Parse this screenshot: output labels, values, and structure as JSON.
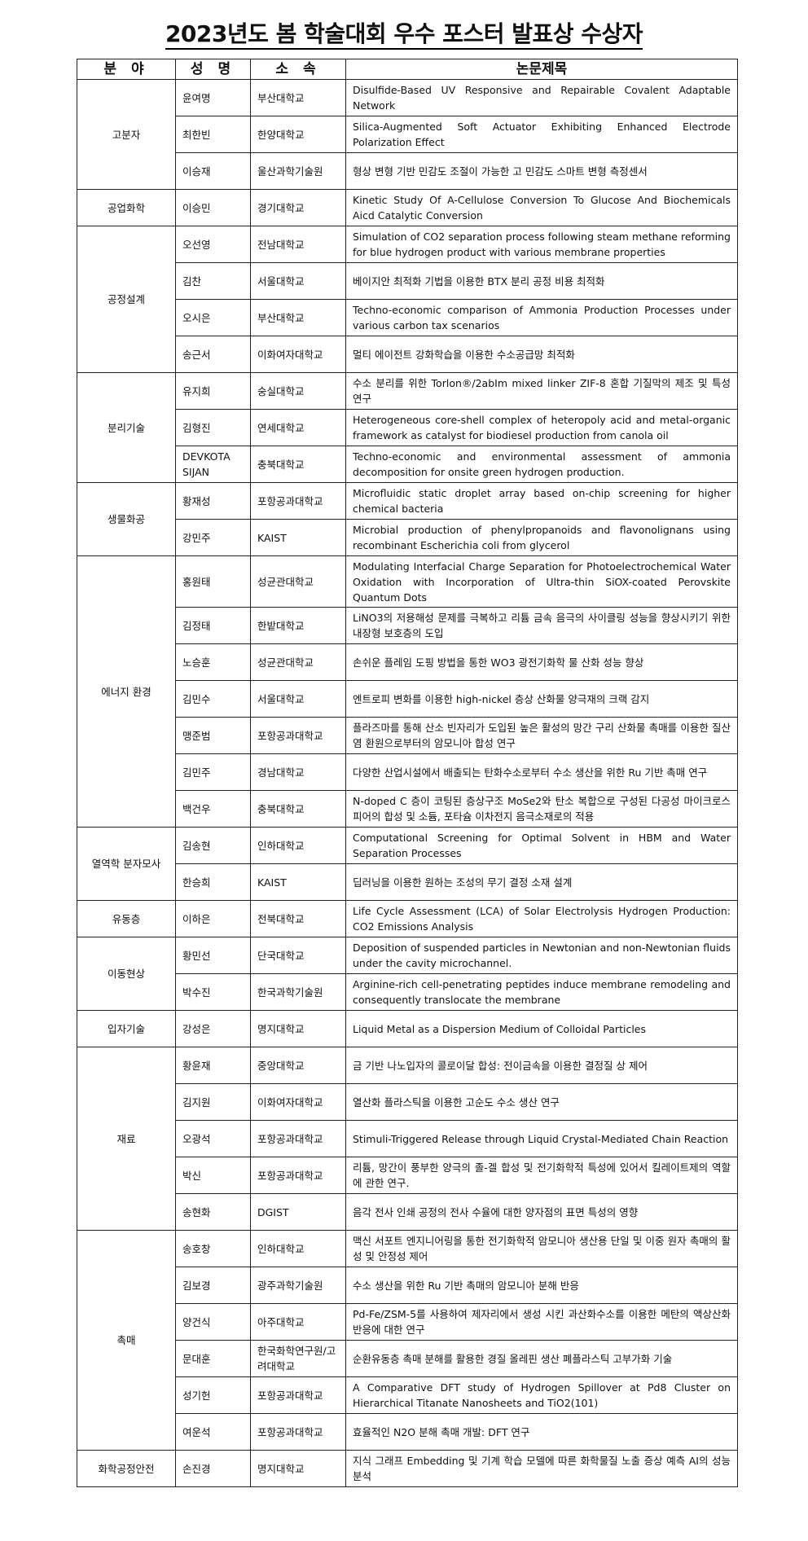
{
  "title": "2023년도 봄 학술대회 우수 포스터 발표상 수상자",
  "headers": [
    "분 야",
    "성 명",
    "소 속",
    "논문제목"
  ],
  "groups": [
    {
      "field": "고분자",
      "rows": [
        {
          "name": "윤여명",
          "affiliation": "부산대학교",
          "paper": "Disulfide-Based UV Responsive and Repairable Covalent Adaptable Network"
        },
        {
          "name": "최한빈",
          "affiliation": "한양대학교",
          "paper": "Silica-Augmented Soft Actuator Exhibiting Enhanced Electrode Polarization Effect"
        },
        {
          "name": "이승재",
          "affiliation": "울산과학기술원",
          "paper": "형상 변형 기반 민감도 조절이 가능한 고 민감도 스마트 변형 측정센서"
        }
      ]
    },
    {
      "field": "공업화학",
      "rows": [
        {
          "name": "이승민",
          "affiliation": "경기대학교",
          "paper": "Kinetic Study Of A-Cellulose Conversion To Glucose And Biochemicals Aicd Catalytic Conversion"
        }
      ]
    },
    {
      "field": "공정설계",
      "rows": [
        {
          "name": "오선영",
          "affiliation": "전남대학교",
          "paper": "Simulation of CO2 separation process following steam methane reforming for blue hydrogen product with various membrane properties"
        },
        {
          "name": "김찬",
          "affiliation": "서울대학교",
          "paper": "베이지안 최적화 기법을 이용한 BTX 분리 공정 비용 최적화"
        },
        {
          "name": "오시은",
          "affiliation": "부산대학교",
          "paper": "Techno-economic comparison of Ammonia Production Processes under various carbon tax scenarios"
        },
        {
          "name": "송근서",
          "affiliation": "이화여자대학교",
          "paper": "멀티 에이전트 강화학습을 이용한 수소공급망 최적화"
        }
      ]
    },
    {
      "field": "분리기술",
      "rows": [
        {
          "name": "유지희",
          "affiliation": "숭실대학교",
          "paper": "수소 분리를 위한 Torlon®/2abIm mixed linker ZIF-8 혼합 기질막의 제조 및 특성 연구"
        },
        {
          "name": "김형진",
          "affiliation": "연세대학교",
          "paper": "Heterogeneous core-shell complex of heteropoly acid and metal-organic framework as catalyst for biodiesel production from canola oil"
        },
        {
          "name": "DEVKOTA SIJAN",
          "affiliation": "충북대학교",
          "paper": "Techno-economic and environmental assessment of ammonia decomposition for onsite green hydrogen production."
        }
      ]
    },
    {
      "field": "생물화공",
      "rows": [
        {
          "name": "황재성",
          "affiliation": "포항공과대학교",
          "paper": "Microfluidic static droplet array based on-chip screening for higher chemical bacteria"
        },
        {
          "name": "강민주",
          "affiliation": "KAIST",
          "paper": "Microbial production of phenylpropanoids and flavonolignans using recombinant Escherichia coli from glycerol"
        }
      ]
    },
    {
      "field": "에너지 환경",
      "rows": [
        {
          "name": "홍원태",
          "affiliation": "성균관대학교",
          "paper": "Modulating Interfacial Charge Separation for Photoelectrochemical Water Oxidation with Incorporation of Ultra-thin SiOX-coated Perovskite Quantum Dots"
        },
        {
          "name": "김정태",
          "affiliation": "한밭대학교",
          "paper": "LiNO3의 저용해성 문제를 극복하고 리튬 금속 음극의 사이클링 성능을 향상시키기 위한 내장형 보호층의 도입"
        },
        {
          "name": "노승훈",
          "affiliation": "성균관대학교",
          "paper": "손쉬운 플레임 도핑 방법을 통한 WO3 광전기화학 물 산화 성능 향상"
        },
        {
          "name": "김민수",
          "affiliation": "서울대학교",
          "paper": "엔트로피 변화를 이용한 high-nickel 층상 산화물 양극재의 크랙 감지"
        },
        {
          "name": "맹준범",
          "affiliation": "포항공과대학교",
          "paper": "플라즈마를 통해 산소 빈자리가 도입된 높은 활성의 망간 구리 산화물 촉매를 이용한 질산염 환원으로부터의 암모니아 합성 연구"
        },
        {
          "name": "김민주",
          "affiliation": "경남대학교",
          "paper": "다양한 산업시설에서 배출되는 탄화수소로부터 수소 생산을 위한 Ru 기반 촉매 연구"
        },
        {
          "name": "백건우",
          "affiliation": "충북대학교",
          "paper": "N-doped C 층이 코팅된 층상구조 MoSe2와 탄소 복합으로 구성된 다공성 마이크로스피어의 합성 및 소듐, 포타슘 이차전지 음극소재로의 적용"
        }
      ]
    },
    {
      "field": "열역학 분자모사",
      "rows": [
        {
          "name": "김송현",
          "affiliation": "인하대학교",
          "paper": "Computational Screening for Optimal Solvent in HBM and Water Separation Processes"
        },
        {
          "name": "한승희",
          "affiliation": "KAIST",
          "paper": "딥러닝을 이용한 원하는 조성의 무기 결정 소재 설계"
        }
      ]
    },
    {
      "field": "유동층",
      "rows": [
        {
          "name": "이하은",
          "affiliation": "전북대학교",
          "paper": "Life Cycle Assessment (LCA) of Solar Electrolysis Hydrogen Production: CO2 Emissions Analysis"
        }
      ]
    },
    {
      "field": "이동현상",
      "rows": [
        {
          "name": "황민선",
          "affiliation": "단국대학교",
          "paper": "Deposition of suspended particles in Newtonian and non-Newtonian fluids under the cavity microchannel."
        },
        {
          "name": "박수진",
          "affiliation": "한국과학기술원",
          "paper": "Arginine-rich cell-penetrating peptides induce membrane remodeling and consequently translocate the membrane"
        }
      ]
    },
    {
      "field": "입자기술",
      "rows": [
        {
          "name": "강성은",
          "affiliation": "명지대학교",
          "paper": "Liquid Metal as a Dispersion Medium of Colloidal Particles"
        }
      ]
    },
    {
      "field": "재료",
      "rows": [
        {
          "name": "황윤재",
          "affiliation": "중앙대학교",
          "paper": "금 기반 나노입자의 콜로이달 합성: 전이금속을 이용한 결정질 상 제어"
        },
        {
          "name": "김지원",
          "affiliation": "이화여자대학교",
          "paper": "열산화 플라스틱을 이용한 고순도 수소 생산 연구"
        },
        {
          "name": "오광석",
          "affiliation": "포항공과대학교",
          "paper": "Stimuli-Triggered Release through Liquid Crystal-Mediated Chain Reaction"
        },
        {
          "name": "박신",
          "affiliation": "포항공과대학교",
          "paper": "리튬, 망간이 풍부한 양극의 졸-겔 합성 및 전기화학적 특성에 있어서 킬레이트제의 역할에 관한 연구."
        },
        {
          "name": "송현화",
          "affiliation": "DGIST",
          "paper": "음각 전사 인쇄 공정의 전사 수율에 대한 양자점의 표면 특성의 영향"
        }
      ]
    },
    {
      "field": "촉매",
      "rows": [
        {
          "name": "송호창",
          "affiliation": "인하대학교",
          "paper": "맥신 서포트 엔지니어링을 통한 전기화학적 암모니아 생산용 단일 및 이중 원자 촉매의 활성 및 안정성 제어"
        },
        {
          "name": "김보경",
          "affiliation": "광주과학기술원",
          "paper": "수소 생산을 위한 Ru 기반 촉매의 암모니아 분해 반응"
        },
        {
          "name": "양건식",
          "affiliation": "아주대학교",
          "paper": "Pd-Fe/ZSM-5를 사용하여 제자리에서 생성 시킨 과산화수소를 이용한 메탄의 액상산화 반응에 대한 연구"
        },
        {
          "name": "문대훈",
          "affiliation": "한국화학연구원/고려대학교",
          "paper": "순환유동층 촉매 분해를 활용한 경질 올레핀 생산 폐플라스틱 고부가화 기술"
        },
        {
          "name": "성기헌",
          "affiliation": "포항공과대학교",
          "paper": "A Comparative DFT study of Hydrogen Spillover at Pd8 Cluster on Hierarchical Titanate Nanosheets and TiO2(101)"
        },
        {
          "name": "여운석",
          "affiliation": "포항공과대학교",
          "paper": "효율적인 N2O 분해 촉매 개발: DFT 연구"
        }
      ]
    },
    {
      "field": "화학공정안전",
      "rows": [
        {
          "name": "손진경",
          "affiliation": "명지대학교",
          "paper": "지식 그래프 Embedding 및 기계 학습 모델에 따른 화학물질 노출 증상 예측 AI의 성능 분석"
        }
      ]
    }
  ]
}
